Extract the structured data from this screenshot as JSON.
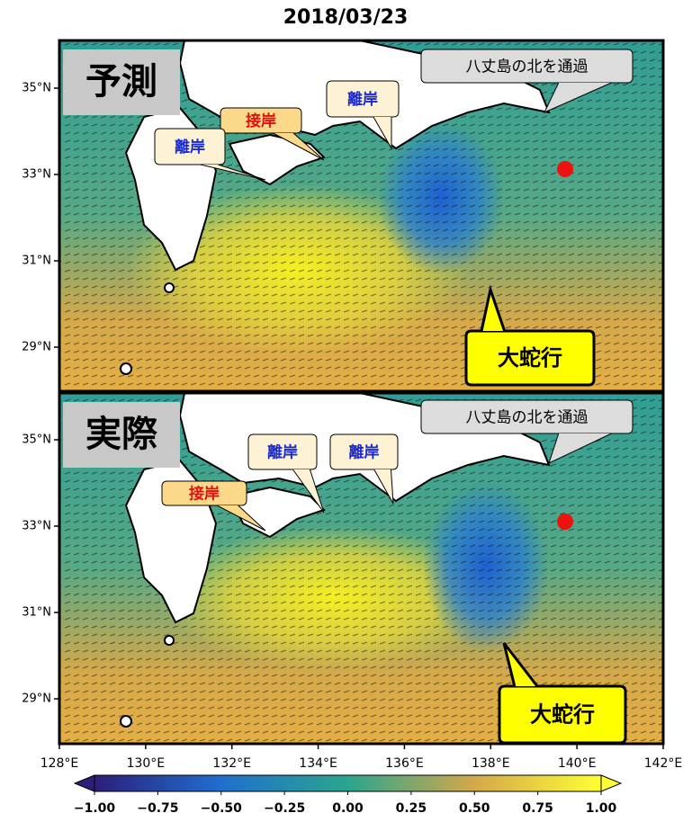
{
  "title": "2018/03/23",
  "panels": [
    {
      "label": "予測",
      "callouts": [
        "八丈島の北を通過",
        "離岸",
        "接岸",
        "離岸",
        "大蛇行"
      ]
    },
    {
      "label": "実際",
      "callouts": [
        "八丈島の北を通過",
        "離岸",
        "離岸",
        "接岸",
        "大蛇行"
      ]
    }
  ],
  "lat_ticks": [
    "35°N",
    "33°N",
    "31°N",
    "29°N"
  ],
  "lon_ticks": [
    "128°E",
    "130°E",
    "132°E",
    "134°E",
    "136°E",
    "138°E",
    "140°E",
    "142°E"
  ],
  "colorbar_ticks": [
    "−1.00",
    "−0.75",
    "−0.50",
    "−0.25",
    "0.00",
    "0.25",
    "0.50",
    "0.75",
    "1.00"
  ]
}
